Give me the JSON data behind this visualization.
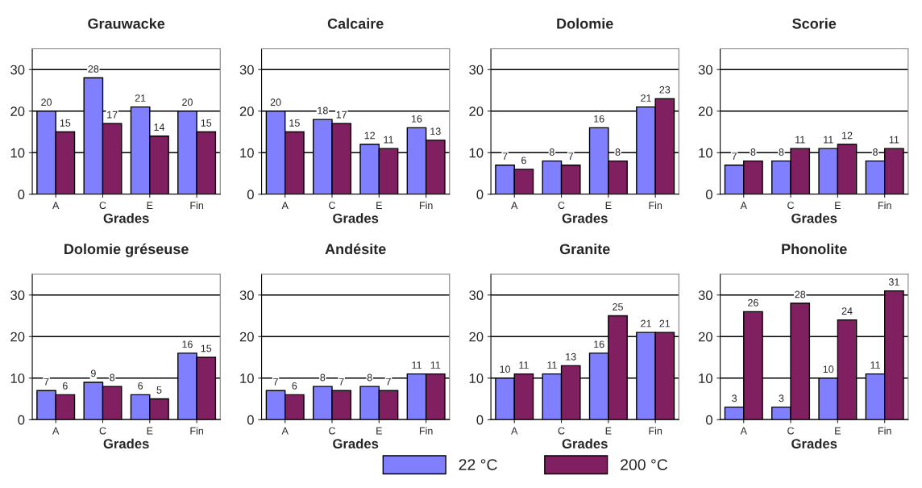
{
  "chart_data": [
    {
      "type": "bar",
      "title": "Grauwacke",
      "xlabel": "Grades",
      "categories": [
        "A",
        "C",
        "E",
        "Fin"
      ],
      "ylim": [
        0,
        35
      ],
      "yticks": [
        0,
        10,
        20,
        30
      ],
      "grid": "y",
      "data_labels": true,
      "series": [
        {
          "color": "#8080ff",
          "values": [
            20,
            28,
            21,
            20
          ]
        },
        {
          "color": "#802060",
          "values": [
            15,
            17,
            14,
            15
          ]
        }
      ]
    },
    {
      "type": "bar",
      "title": "Calcaire",
      "xlabel": "Grades",
      "categories": [
        "A",
        "C",
        "E",
        "Fin"
      ],
      "ylim": [
        0,
        35
      ],
      "yticks": [
        0,
        10,
        20,
        30
      ],
      "grid": "y",
      "data_labels": true,
      "series": [
        {
          "color": "#8080ff",
          "values": [
            20,
            18,
            12,
            16
          ]
        },
        {
          "color": "#802060",
          "values": [
            15,
            17,
            11,
            13
          ]
        }
      ]
    },
    {
      "type": "bar",
      "title": "Dolomie",
      "xlabel": "Grades",
      "categories": [
        "A",
        "C",
        "E",
        "Fin"
      ],
      "ylim": [
        0,
        35
      ],
      "yticks": [
        0,
        10,
        20,
        30
      ],
      "grid": "y",
      "data_labels": true,
      "series": [
        {
          "color": "#8080ff",
          "values": [
            7,
            8,
            16,
            21
          ]
        },
        {
          "color": "#802060",
          "values": [
            6,
            7,
            8,
            23
          ]
        }
      ]
    },
    {
      "type": "bar",
      "title": "Scorie",
      "xlabel": "Grades",
      "categories": [
        "A",
        "C",
        "E",
        "Fin"
      ],
      "ylim": [
        0,
        35
      ],
      "yticks": [
        0,
        10,
        20,
        30
      ],
      "grid": "y",
      "data_labels": true,
      "series": [
        {
          "color": "#8080ff",
          "values": [
            7,
            8,
            11,
            8
          ]
        },
        {
          "color": "#802060",
          "values": [
            8,
            11,
            12,
            11
          ]
        }
      ]
    },
    {
      "type": "bar",
      "title": "Dolomie gréseuse",
      "xlabel": "Grades",
      "categories": [
        "A",
        "C",
        "E",
        "Fin"
      ],
      "ylim": [
        0,
        35
      ],
      "yticks": [
        0,
        10,
        20,
        30
      ],
      "grid": "y",
      "data_labels": true,
      "series": [
        {
          "color": "#8080ff",
          "values": [
            7,
            9,
            6,
            16
          ]
        },
        {
          "color": "#802060",
          "values": [
            6,
            8,
            5,
            15
          ]
        }
      ]
    },
    {
      "type": "bar",
      "title": "Andésite",
      "xlabel": "Grades",
      "categories": [
        "A",
        "C",
        "E",
        "Fin"
      ],
      "ylim": [
        0,
        35
      ],
      "yticks": [
        0,
        10,
        20,
        30
      ],
      "grid": "y",
      "data_labels": true,
      "series": [
        {
          "color": "#8080ff",
          "values": [
            7,
            8,
            8,
            11
          ]
        },
        {
          "color": "#802060",
          "values": [
            6,
            7,
            7,
            11
          ]
        }
      ]
    },
    {
      "type": "bar",
      "title": "Granite",
      "xlabel": "Grades",
      "categories": [
        "A",
        "C",
        "E",
        "Fin"
      ],
      "ylim": [
        0,
        35
      ],
      "yticks": [
        0,
        10,
        20,
        30
      ],
      "grid": "y",
      "data_labels": true,
      "series": [
        {
          "color": "#8080ff",
          "values": [
            10,
            11,
            16,
            21
          ]
        },
        {
          "color": "#802060",
          "values": [
            11,
            13,
            25,
            21
          ]
        }
      ]
    },
    {
      "type": "bar",
      "title": "Phonolite",
      "xlabel": "Grades",
      "categories": [
        "A",
        "C",
        "E",
        "Fin"
      ],
      "ylim": [
        0,
        35
      ],
      "yticks": [
        0,
        10,
        20,
        30
      ],
      "grid": "y",
      "data_labels": true,
      "legend": "bottom",
      "series": [
        {
          "name": "22 °C",
          "color": "#8080ff",
          "values": [
            3,
            3,
            10,
            11
          ]
        },
        {
          "name": "200 °C",
          "color": "#802060",
          "values": [
            26,
            28,
            24,
            31
          ]
        }
      ]
    }
  ]
}
